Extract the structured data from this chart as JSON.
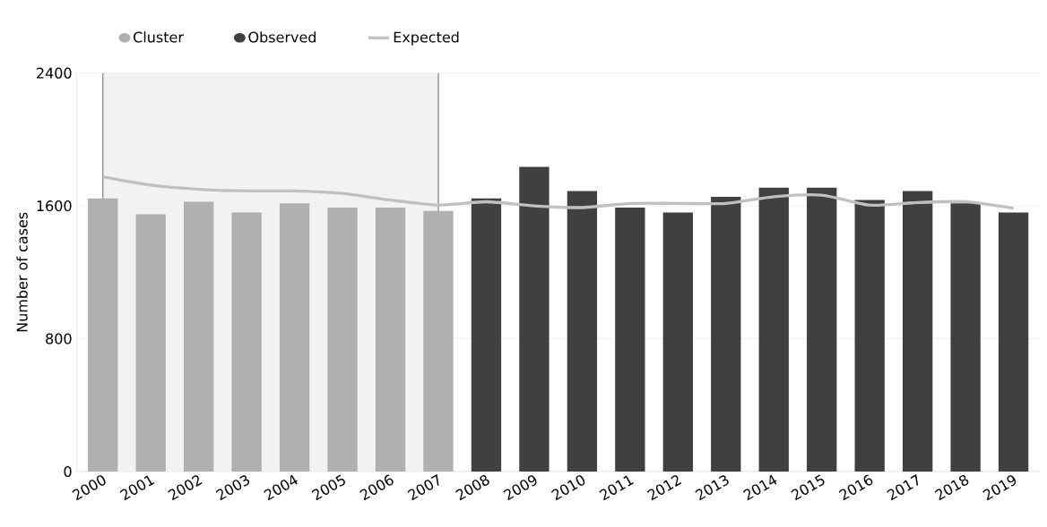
{
  "chart_data": {
    "type": "bar",
    "ylabel": "Number of cases",
    "categories": [
      "2000",
      "2001",
      "2002",
      "2003",
      "2004",
      "2005",
      "2006",
      "2007",
      "2008",
      "2009",
      "2010",
      "2011",
      "2012",
      "2013",
      "2014",
      "2015",
      "2016",
      "2017",
      "2018",
      "2019"
    ],
    "series": [
      {
        "name": "Cluster",
        "color": "#b0b0b0",
        "values": [
          1645,
          1550,
          1625,
          1560,
          1615,
          1590,
          1590,
          1570,
          null,
          null,
          null,
          null,
          null,
          null,
          null,
          null,
          null,
          null,
          null,
          null
        ]
      },
      {
        "name": "Observed",
        "color": "#404040",
        "values": [
          null,
          null,
          null,
          null,
          null,
          null,
          null,
          null,
          1645,
          1835,
          1690,
          1590,
          1560,
          1655,
          1710,
          1710,
          1635,
          1690,
          1615,
          1560
        ]
      },
      {
        "name": "Expected",
        "type": "line",
        "color": "#c0c0c0",
        "values": [
          1775,
          1725,
          1700,
          1690,
          1690,
          1675,
          1635,
          1605,
          1625,
          1600,
          1590,
          1615,
          1615,
          1615,
          1655,
          1665,
          1605,
          1620,
          1625,
          1585
        ]
      }
    ],
    "ref_lines": [
      {
        "axis": "x",
        "value": "2000",
        "color": "#8c8c8c"
      },
      {
        "axis": "x",
        "value": "2007",
        "color": "#8c8c8c"
      }
    ],
    "bands": [
      {
        "axis": "x",
        "from": "2000",
        "to": "2007",
        "color": "#f2f2f2"
      }
    ],
    "ylim": [
      0,
      2400
    ],
    "yticks": [
      0,
      800,
      1600,
      2400
    ],
    "grid": "y",
    "legend": "top"
  }
}
